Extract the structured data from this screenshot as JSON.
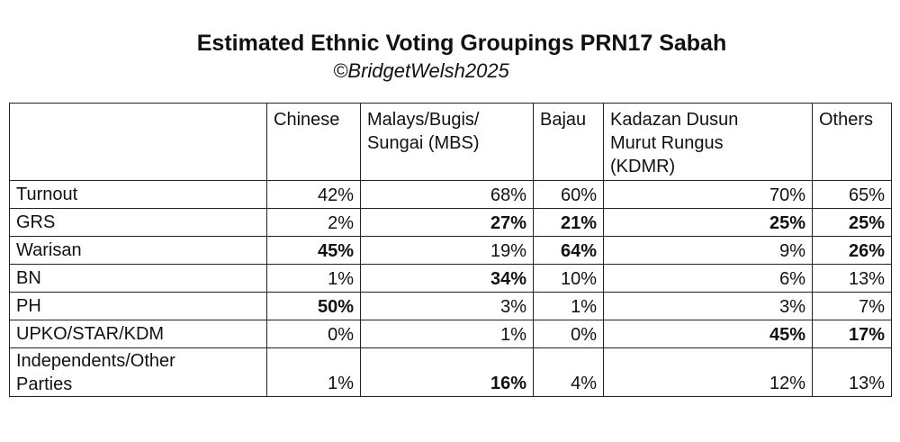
{
  "chart_data": {
    "type": "table",
    "title": "Estimated Ethnic Voting Groupings PRN17 Sabah",
    "subtitle": "©BridgetWelsh2025",
    "columns": [
      "",
      "Chinese",
      "Malays/Bugis/\nSungai (MBS)",
      "Bajau",
      "Kadazan Dusun\nMurut Rungus\n(KDMR)",
      "Others"
    ],
    "rows": [
      {
        "label": "Turnout",
        "values": [
          "42%",
          "68%",
          "60%",
          "70%",
          "65%"
        ],
        "bold": [
          false,
          false,
          false,
          false,
          false
        ]
      },
      {
        "label": "GRS",
        "values": [
          "2%",
          "27%",
          "21%",
          "25%",
          "25%"
        ],
        "bold": [
          false,
          true,
          true,
          true,
          true
        ]
      },
      {
        "label": "Warisan",
        "values": [
          "45%",
          "19%",
          "64%",
          "9%",
          "26%"
        ],
        "bold": [
          true,
          false,
          true,
          false,
          true
        ]
      },
      {
        "label": "BN",
        "values": [
          "1%",
          "34%",
          "10%",
          "6%",
          "13%"
        ],
        "bold": [
          false,
          true,
          false,
          false,
          false
        ]
      },
      {
        "label": "PH",
        "values": [
          "50%",
          "3%",
          "1%",
          "3%",
          "7%"
        ],
        "bold": [
          true,
          false,
          false,
          false,
          false
        ]
      },
      {
        "label": "UPKO/STAR/KDM",
        "values": [
          "0%",
          "1%",
          "0%",
          "45%",
          "17%"
        ],
        "bold": [
          false,
          false,
          false,
          true,
          true
        ]
      },
      {
        "label": "Independents/Other\nParties",
        "values": [
          "1%",
          "16%",
          "4%",
          "12%",
          "13%"
        ],
        "bold": [
          false,
          true,
          false,
          false,
          false
        ]
      }
    ]
  }
}
